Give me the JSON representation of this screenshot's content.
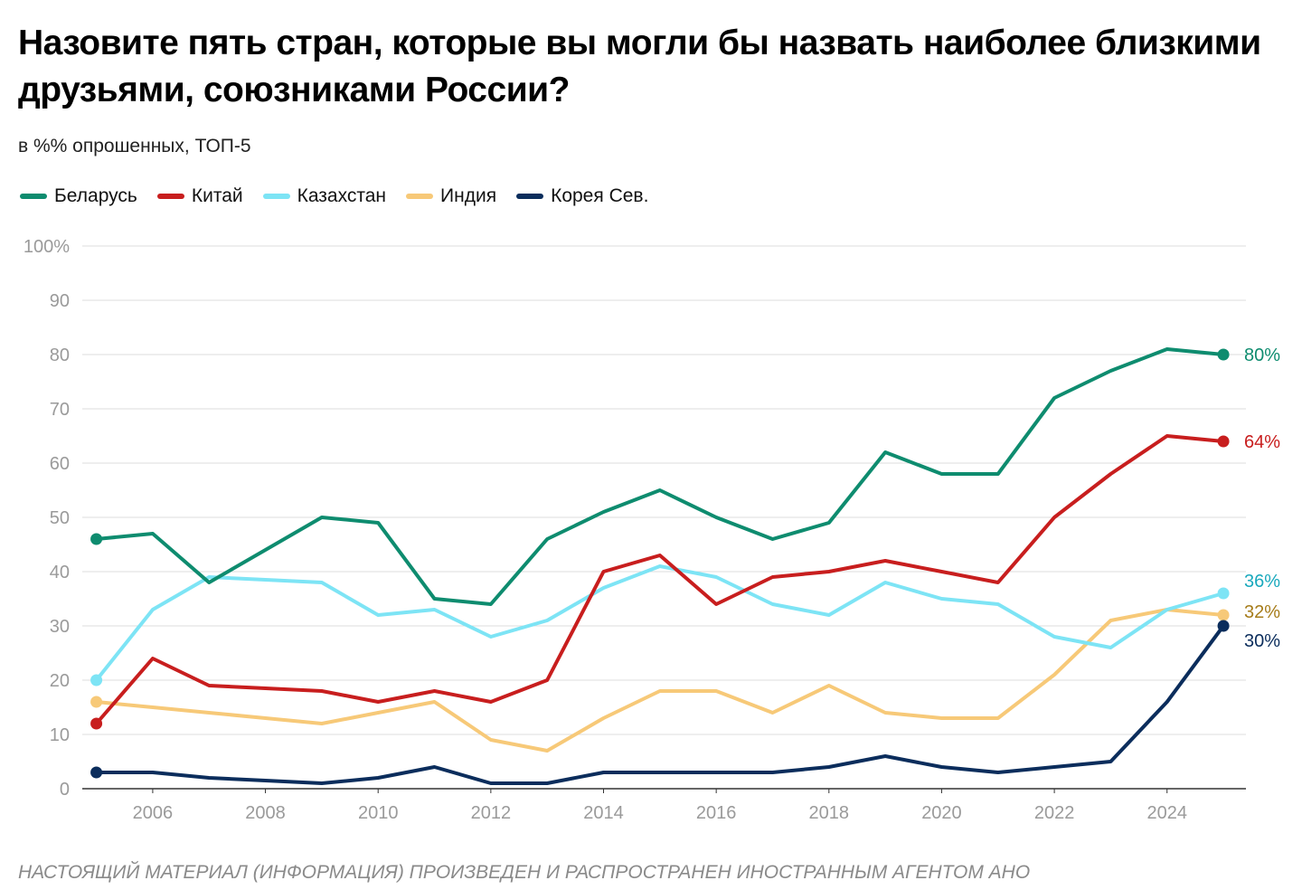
{
  "chart_data": {
    "type": "line",
    "title": "Назовите пять стран, которые вы могли бы назвать наиболее близкими друзьями, союзниками России?",
    "subtitle": "в %% опрошенных, ТОП-5",
    "xlabel": "",
    "ylabel": "",
    "ylim": [
      0,
      100
    ],
    "yticks": [
      "0",
      "10",
      "20",
      "30",
      "40",
      "50",
      "60",
      "70",
      "80",
      "90",
      "100%"
    ],
    "xticks": [
      "2006",
      "2008",
      "2010",
      "2012",
      "2014",
      "2016",
      "2018",
      "2020",
      "2022",
      "2024"
    ],
    "x": [
      2005,
      2006,
      2007,
      2008,
      2009,
      2010,
      2011,
      2012,
      2013,
      2014,
      2015,
      2016,
      2017,
      2018,
      2019,
      2020,
      2021,
      2022,
      2023,
      2024,
      2025
    ],
    "series": [
      {
        "name": "Беларусь",
        "color": "#0e8c6f",
        "label_color": "#0e8c6f",
        "end_label": "80%",
        "values": [
          46,
          47,
          38,
          44,
          50,
          49,
          35,
          34,
          46,
          51,
          55,
          50,
          46,
          49,
          62,
          58,
          58,
          72,
          77,
          81,
          80
        ]
      },
      {
        "name": "Китай",
        "color": "#c81e1e",
        "label_color": "#c81e1e",
        "end_label": "64%",
        "values": [
          12,
          24,
          19,
          18.5,
          18,
          16,
          18,
          16,
          20,
          40,
          43,
          34,
          39,
          40,
          42,
          40,
          38,
          50,
          58,
          65,
          64
        ]
      },
      {
        "name": "Казахстан",
        "color": "#7de4f5",
        "label_color": "#1aa9bd",
        "end_label": "36%",
        "values": [
          20,
          33,
          39,
          38.5,
          38,
          32,
          33,
          28,
          31,
          37,
          41,
          39,
          34,
          32,
          38,
          35,
          34,
          28,
          26,
          33,
          36
        ]
      },
      {
        "name": "Индия",
        "color": "#f7c978",
        "label_color": "#a67c1a",
        "end_label": "32%",
        "values": [
          16,
          15,
          14,
          13,
          12,
          14,
          16,
          9,
          7,
          13,
          18,
          18,
          14,
          19,
          14,
          13,
          13,
          21,
          31,
          33,
          32
        ]
      },
      {
        "name": "Корея Сев.",
        "color": "#0b2d5c",
        "label_color": "#0b2d5c",
        "end_label": "30%",
        "values": [
          3,
          3,
          2,
          1.5,
          1,
          2,
          4,
          1,
          1,
          3,
          3,
          3,
          3,
          4,
          6,
          4,
          3,
          4,
          5,
          16,
          30
        ]
      }
    ]
  },
  "footer": "НАСТОЯЩИЙ МАТЕРИАЛ (ИНФОРМАЦИЯ) ПРОИЗВЕДЕН И РАСПРОСТРАНЕН ИНОСТРАННЫМ АГЕНТОМ АНО"
}
